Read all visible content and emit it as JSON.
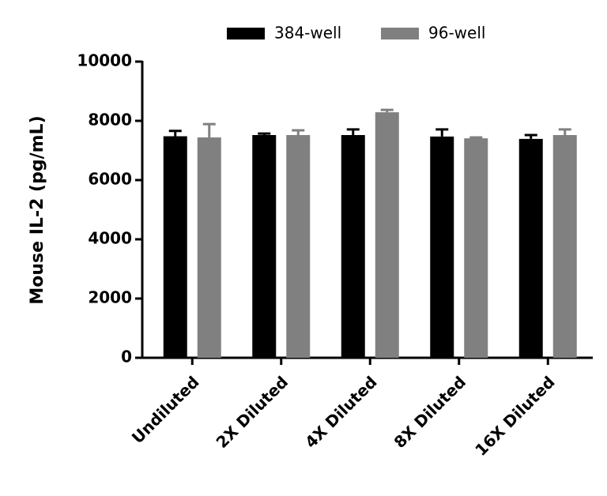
{
  "chart_data": {
    "type": "bar",
    "y_label": "Mouse IL-2 (pg/mL)",
    "categories": [
      "Undiluted",
      "2X Diluted",
      "4X Diluted",
      "8X Diluted",
      "16X Diluted"
    ],
    "series": [
      {
        "name": "384-well",
        "color": "#000000",
        "values": [
          7480,
          7520,
          7520,
          7470,
          7390
        ],
        "errors": [
          180,
          50,
          190,
          240,
          130
        ]
      },
      {
        "name": "96-well",
        "color": "#808080",
        "values": [
          7440,
          7520,
          8290,
          7410,
          7520
        ],
        "errors": [
          450,
          160,
          80,
          30,
          190
        ]
      }
    ],
    "ylim": [
      0,
      10000
    ],
    "yticks": [
      0,
      2000,
      4000,
      6000,
      8000,
      10000
    ]
  }
}
